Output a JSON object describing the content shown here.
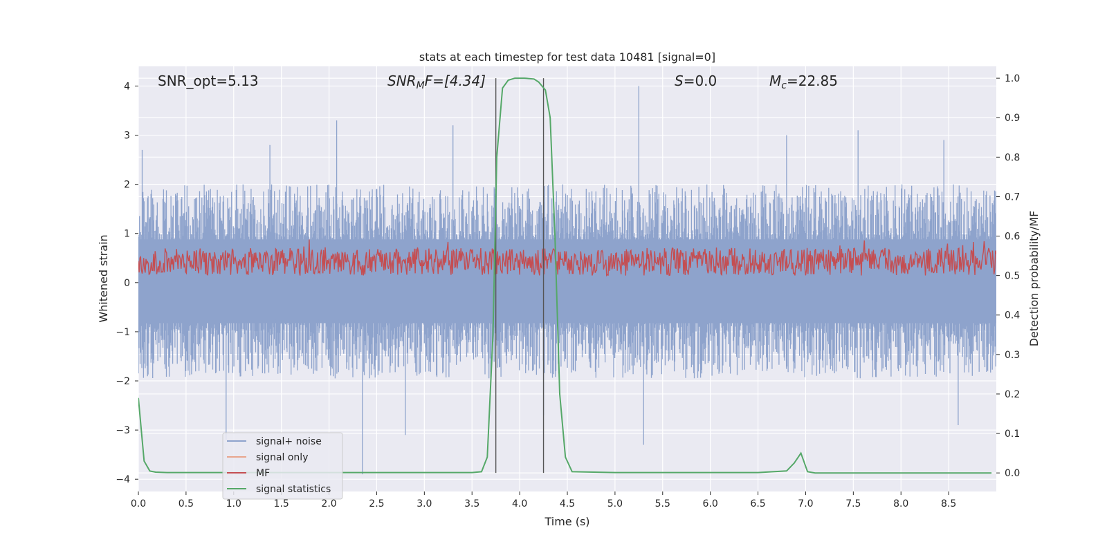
{
  "chart_data": {
    "type": "line",
    "title": "stats at each timestep for test data 10481 [signal=0]",
    "xlabel": "Time (s)",
    "ylabel": "Whitened strain",
    "y2label": "Detection probability/MF",
    "xlim": [
      0.0,
      9.0
    ],
    "ylim": [
      -4.25,
      4.4
    ],
    "y2lim": [
      -0.047,
      1.03
    ],
    "xticks": [
      "0.0",
      "0.5",
      "1.0",
      "1.5",
      "2.0",
      "2.5",
      "3.0",
      "3.5",
      "4.0",
      "4.5",
      "5.0",
      "5.5",
      "6.0",
      "6.5",
      "7.0",
      "7.5",
      "8.0",
      "8.5"
    ],
    "yticks": [
      "−4",
      "−3",
      "−2",
      "−1",
      "0",
      "1",
      "2",
      "3",
      "4"
    ],
    "y2ticks": [
      "0.0",
      "0.1",
      "0.2",
      "0.3",
      "0.4",
      "0.5",
      "0.6",
      "0.7",
      "0.8",
      "0.9",
      "1.0"
    ],
    "grid": true,
    "legend_placement": "lower-left",
    "annotations": {
      "snr_opt": "SNR_opt=5.13",
      "snr_mf_sym": "SNR",
      "snr_mf_sub": "M",
      "snr_mf_rest": "F=[4.34]",
      "s_sym": "S",
      "s_rest": "=0.0",
      "mc_sym": "M",
      "mc_sub": "c",
      "mc_rest": "=22.85"
    },
    "vlines": [
      3.75,
      4.25
    ],
    "series": [
      {
        "name": "signal+ noise",
        "color": "#8ea3cc",
        "axis": "left",
        "envelope": {
          "upper_typical": 1.6,
          "lower_typical": -1.5,
          "peaks": [
            {
              "x": 0.04,
              "y": 2.7
            },
            {
              "x": 1.38,
              "y": 2.8
            },
            {
              "x": 2.08,
              "y": 3.3
            },
            {
              "x": 3.3,
              "y": 3.2
            },
            {
              "x": 5.25,
              "y": 4.0
            },
            {
              "x": 7.55,
              "y": 3.1
            },
            {
              "x": 8.45,
              "y": 2.9
            },
            {
              "x": 6.8,
              "y": 3.0
            },
            {
              "x": 2.35,
              "y": -3.9
            },
            {
              "x": 0.92,
              "y": -3.2
            },
            {
              "x": 5.3,
              "y": -3.3
            },
            {
              "x": 2.8,
              "y": -3.1
            },
            {
              "x": 4.25,
              "y": -2.7
            },
            {
              "x": 8.6,
              "y": -2.9
            }
          ]
        }
      },
      {
        "name": "signal only",
        "color": "#e8a58c",
        "axis": "left",
        "values": []
      },
      {
        "name": "MF",
        "color": "#c44e52",
        "axis": "right",
        "band": [
          0.5,
          0.57
        ]
      },
      {
        "name": "signal statistics",
        "color": "#55a868",
        "axis": "right",
        "x": [
          0.0,
          0.06,
          0.12,
          0.18,
          0.3,
          0.5,
          1.0,
          2.0,
          3.0,
          3.5,
          3.6,
          3.66,
          3.72,
          3.76,
          3.82,
          3.88,
          3.95,
          4.05,
          4.15,
          4.2,
          4.27,
          4.32,
          4.37,
          4.42,
          4.48,
          4.55,
          5.0,
          6.0,
          6.5,
          6.8,
          6.88,
          6.95,
          7.02,
          7.1,
          7.5,
          8.0,
          8.95
        ],
        "y": [
          0.19,
          0.03,
          0.005,
          0.002,
          0.001,
          0.001,
          0.001,
          0.001,
          0.001,
          0.001,
          0.003,
          0.04,
          0.35,
          0.8,
          0.975,
          0.995,
          1.0,
          1.0,
          0.998,
          0.99,
          0.97,
          0.9,
          0.6,
          0.2,
          0.04,
          0.003,
          0.001,
          0.001,
          0.001,
          0.005,
          0.025,
          0.05,
          0.003,
          0.0,
          0.0,
          0.0,
          0.0
        ]
      }
    ]
  }
}
